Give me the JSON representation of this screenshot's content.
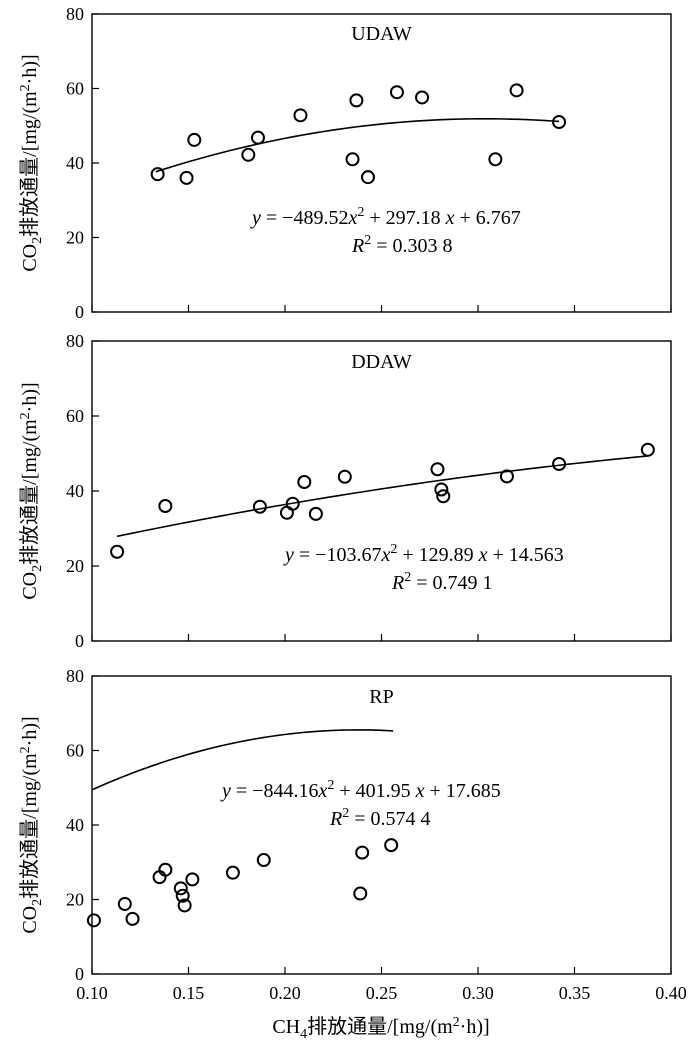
{
  "chart_data": [
    {
      "type": "scatter",
      "panel": "UDAW",
      "title": "UDAW",
      "ylabel": "CO2排放通量/[mg/(m2·h)]",
      "ylim": [
        0,
        80
      ],
      "yticks": [
        0,
        20,
        40,
        60,
        80
      ],
      "xlim": [
        0.1,
        0.4
      ],
      "points": [
        [
          0.134,
          37.0
        ],
        [
          0.149,
          36.0
        ],
        [
          0.153,
          46.2
        ],
        [
          0.181,
          42.2
        ],
        [
          0.186,
          46.8
        ],
        [
          0.208,
          52.8
        ],
        [
          0.235,
          41.0
        ],
        [
          0.237,
          56.8
        ],
        [
          0.243,
          36.2
        ],
        [
          0.258,
          59.0
        ],
        [
          0.271,
          57.6
        ],
        [
          0.309,
          41.0
        ],
        [
          0.32,
          59.5
        ],
        [
          0.342,
          51.0
        ]
      ],
      "fit": {
        "a": -489.52,
        "b": 297.18,
        "c": 6.767,
        "x_range": [
          0.133,
          0.342
        ]
      },
      "equation": {
        "lhs": "y",
        "eq": " = ",
        "c2": "−489.52",
        "c1": "+ 297.18",
        "c0": "+ 6.767",
        "r2_label": "R",
        "r2_value": " = 0.303 8"
      }
    },
    {
      "type": "scatter",
      "panel": "DDAW",
      "title": "DDAW",
      "ylabel": "CO2排放通量/[mg/(m2·h)]",
      "ylim": [
        0,
        80
      ],
      "yticks": [
        0,
        20,
        40,
        60,
        80
      ],
      "xlim": [
        0.1,
        0.4
      ],
      "points": [
        [
          0.113,
          23.8
        ],
        [
          0.138,
          36.0
        ],
        [
          0.187,
          35.8
        ],
        [
          0.201,
          34.2
        ],
        [
          0.204,
          36.6
        ],
        [
          0.21,
          42.4
        ],
        [
          0.216,
          33.9
        ],
        [
          0.231,
          43.8
        ],
        [
          0.279,
          45.8
        ],
        [
          0.281,
          40.4
        ],
        [
          0.282,
          38.6
        ],
        [
          0.315,
          43.9
        ],
        [
          0.342,
          47.2
        ],
        [
          0.388,
          51.0
        ]
      ],
      "fit": {
        "a": -103.67,
        "b": 129.89,
        "c": 14.563,
        "x_range": [
          0.113,
          0.388
        ]
      },
      "equation": {
        "lhs": "y",
        "eq": " = ",
        "c2": "−103.67",
        "c1": "+ 129.89",
        "c0": "+ 14.563",
        "r2_label": "R",
        "r2_value": " = 0.749 1"
      }
    },
    {
      "type": "scatter",
      "panel": "RP",
      "title": "RP",
      "xlabel": "CH4排放通量/[mg/(m2·h)]",
      "ylabel": "CO2排放通量/[mg/(m2·h)]",
      "ylim": [
        0,
        80
      ],
      "yticks": [
        0,
        20,
        40,
        60,
        80
      ],
      "xlim": [
        0.1,
        0.4
      ],
      "xticks": [
        "0.10",
        "0.15",
        "0.20",
        "0.25",
        "0.30",
        "0.35",
        "0.40"
      ],
      "points": [
        [
          0.101,
          14.4
        ],
        [
          0.117,
          18.8
        ],
        [
          0.121,
          14.8
        ],
        [
          0.135,
          26.0
        ],
        [
          0.138,
          28.0
        ],
        [
          0.146,
          23.0
        ],
        [
          0.147,
          21.0
        ],
        [
          0.148,
          18.4
        ],
        [
          0.152,
          25.4
        ],
        [
          0.173,
          27.2
        ],
        [
          0.189,
          30.6
        ],
        [
          0.239,
          21.6
        ],
        [
          0.24,
          32.6
        ],
        [
          0.255,
          34.6
        ]
      ],
      "fit": {
        "a": -844.16,
        "b": 401.95,
        "c": 17.685,
        "x_range": [
          0.1,
          0.256
        ]
      },
      "equation": {
        "lhs": "y",
        "eq": " = ",
        "c2": "−844.16",
        "c1": "+ 401.95",
        "c0": "+ 17.685",
        "r2_label": "R",
        "r2_value": " = 0.574 4"
      }
    }
  ],
  "labels": {
    "ylabel_prefix": "CO",
    "ylabel_sub": "2",
    "ylabel_rest": "排放通量/[mg/(m",
    "ylabel_sup": "2",
    "ylabel_end": "·h)]",
    "xlabel_prefix": "CH",
    "xlabel_sub": "4",
    "xlabel_rest": "排放通量/[mg/(m",
    "xlabel_sup": "2",
    "xlabel_end": "·h)]",
    "eq_var_x": "x",
    "eq_sup2": "2"
  }
}
